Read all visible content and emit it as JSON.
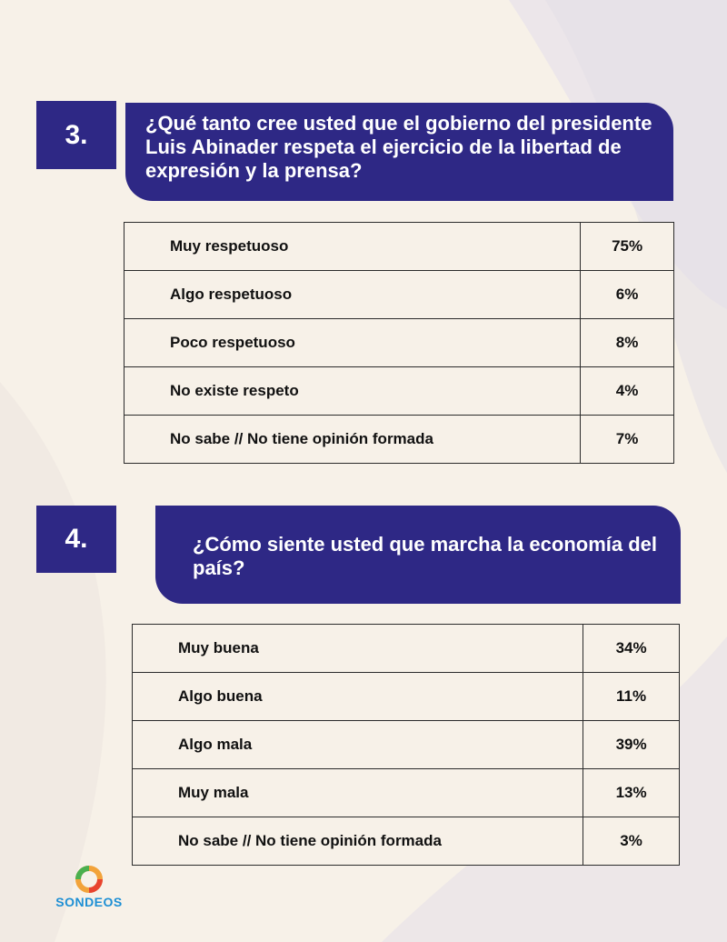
{
  "questions": [
    {
      "number": "3.",
      "text": "¿Qué tanto cree usted que el gobierno del presidente Luis Abinader respeta el ejercicio de la libertad de expresión y la prensa?",
      "answers": [
        {
          "label": "Muy respetuoso",
          "pct": "75%"
        },
        {
          "label": "Algo respetuoso",
          "pct": "6%"
        },
        {
          "label": "Poco respetuoso",
          "pct": "8%"
        },
        {
          "label": "No existe respeto",
          "pct": "4%"
        },
        {
          "label": "No sabe // No tiene opinión formada",
          "pct": "7%"
        }
      ]
    },
    {
      "number": "4.",
      "text": "¿Cómo siente usted que marcha la economía del país?",
      "answers": [
        {
          "label": "Muy buena",
          "pct": "34%"
        },
        {
          "label": "Algo buena",
          "pct": "11%"
        },
        {
          "label": "Algo mala",
          "pct": "39%"
        },
        {
          "label": "Muy mala",
          "pct": "13%"
        },
        {
          "label": "No sabe // No tiene opinión formada",
          "pct": "3%"
        }
      ]
    }
  ],
  "logo": {
    "text": "SONDEOS"
  },
  "colors": {
    "accent": "#2e2885",
    "background": "#f7f1e8",
    "logo_blue": "#1d8fd4"
  }
}
